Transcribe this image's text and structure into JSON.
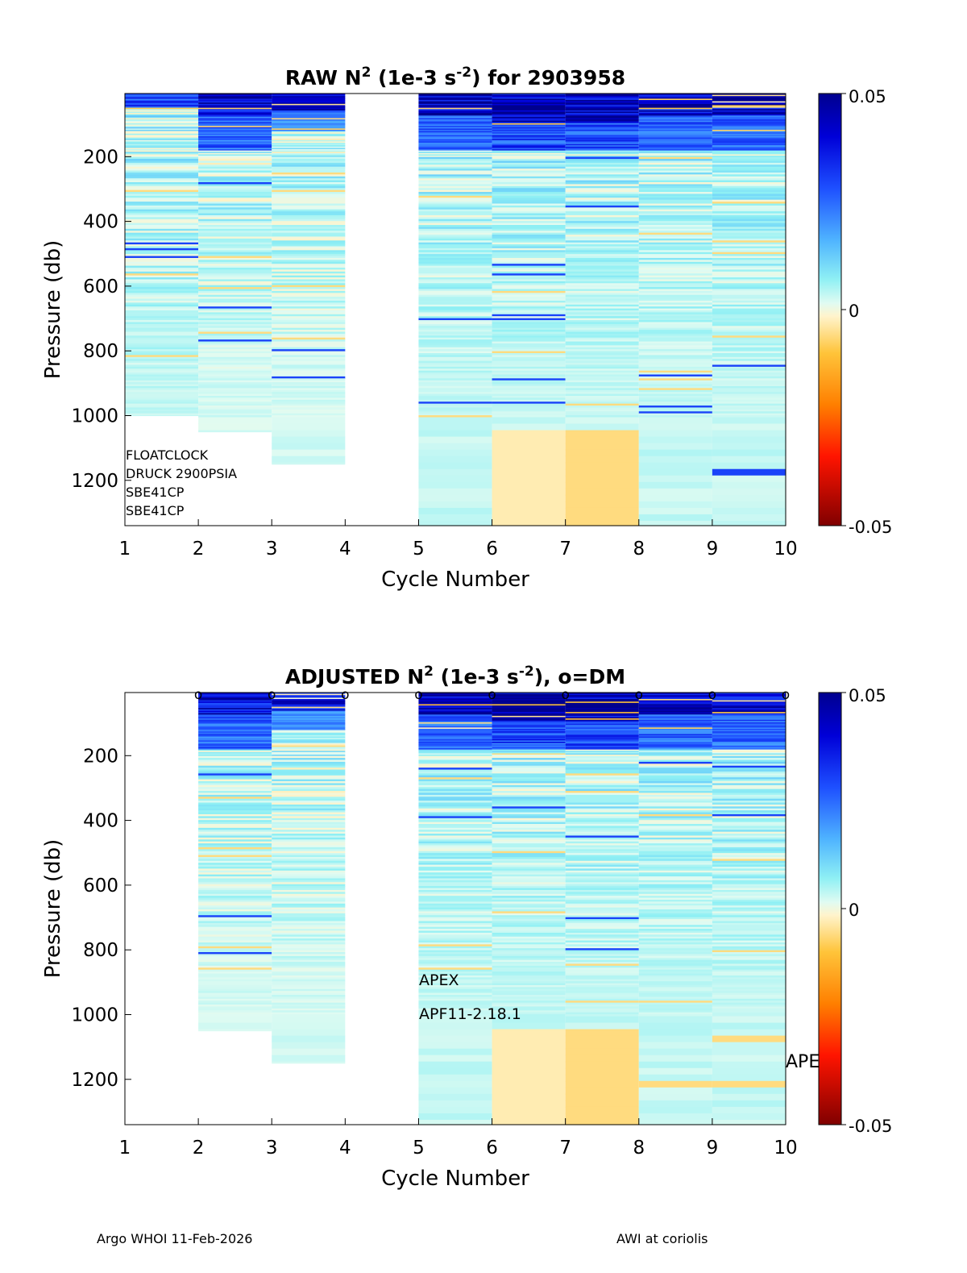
{
  "chart_data": [
    {
      "type": "heatmap",
      "panel": "raw",
      "title_prefix": "RAW N",
      "title_sup1": "2",
      "title_mid": " (1e-3 s",
      "title_sup2": "-2",
      "title_suffix": ") for 2903958",
      "xlabel": "Cycle Number",
      "ylabel": "Pressure (db)",
      "x_ticks": [
        "1",
        "2",
        "3",
        "4",
        "5",
        "6",
        "7",
        "8",
        "9",
        "10"
      ],
      "y_ticks": [
        "200",
        "400",
        "600",
        "800",
        "1000",
        "1200"
      ],
      "xlim": [
        1,
        10
      ],
      "ylim": [
        5,
        1340
      ],
      "colorbar_ticks": [
        "0.05",
        "0",
        "-0.05"
      ],
      "colorbar_range": [
        -0.05,
        0.05
      ],
      "annotations": [
        "FLOATCLOCK",
        "DRUCK 2900PSIA",
        "SBE41CP",
        "SBE41CP"
      ],
      "columns": [
        {
          "cycle": 1,
          "max_pressure": 1000,
          "regime": "weak_mixed",
          "surface_top": 5,
          "deep_value": 0.003
        },
        {
          "cycle": 2,
          "max_pressure": 1050,
          "regime": "strong_surface",
          "surface_top": 5,
          "deep_value": 0.002
        },
        {
          "cycle": 3,
          "max_pressure": 1150,
          "regime": "moderate_surface",
          "surface_top": 5,
          "deep_value": 0.002
        },
        {
          "cycle": 5,
          "max_pressure": 1340,
          "regime": "strong_surface",
          "surface_top": 5,
          "deep_value": 0.003
        },
        {
          "cycle": 6,
          "max_pressure": 1340,
          "regime": "very_strong_surface",
          "surface_top": 5,
          "deep_value": 0.003,
          "bottom_value": -0.003
        },
        {
          "cycle": 7,
          "max_pressure": 1340,
          "regime": "very_strong_surface",
          "surface_top": 5,
          "deep_value": 0.003,
          "bottom_value": -0.006
        },
        {
          "cycle": 8,
          "max_pressure": 1340,
          "regime": "strong_surface",
          "surface_top": 5,
          "deep_value": 0.003
        },
        {
          "cycle": 9,
          "max_pressure": 1340,
          "regime": "strong_surface",
          "surface_top": 5,
          "deep_value": 0.003
        }
      ]
    },
    {
      "type": "heatmap",
      "panel": "adjusted",
      "title_prefix": "ADJUSTED N",
      "title_sup1": "2",
      "title_mid": " (1e-3 s",
      "title_sup2": "-2",
      "title_suffix": "), o=DM",
      "xlabel": "Cycle Number",
      "ylabel": "Pressure (db)",
      "x_ticks": [
        "1",
        "2",
        "3",
        "4",
        "5",
        "6",
        "7",
        "8",
        "9",
        "10"
      ],
      "y_ticks": [
        "200",
        "400",
        "600",
        "800",
        "1000",
        "1200"
      ],
      "xlim": [
        1,
        10
      ],
      "ylim": [
        5,
        1340
      ],
      "colorbar_ticks": [
        "0.05",
        "0",
        "-0.05"
      ],
      "colorbar_range": [
        -0.05,
        0.05
      ],
      "dm_cycles": [
        2,
        3,
        4,
        5,
        6,
        7,
        8,
        9,
        10
      ],
      "dm_marker": "o",
      "annotations": [
        "APEX",
        "APF11-2.18.1"
      ],
      "edge_label": "APE",
      "columns": [
        {
          "cycle": 2,
          "max_pressure": 1050,
          "regime": "strong_surface",
          "surface_top": 5,
          "deep_value": 0.002
        },
        {
          "cycle": 3,
          "max_pressure": 1150,
          "regime": "moderate_surface",
          "surface_top": 5,
          "deep_value": 0.002
        },
        {
          "cycle": 5,
          "max_pressure": 1340,
          "regime": "strong_surface",
          "surface_top": 5,
          "deep_value": 0.003
        },
        {
          "cycle": 6,
          "max_pressure": 1340,
          "regime": "very_strong_surface",
          "surface_top": 5,
          "deep_value": 0.003,
          "bottom_value": -0.003
        },
        {
          "cycle": 7,
          "max_pressure": 1340,
          "regime": "very_strong_surface",
          "surface_top": 5,
          "deep_value": 0.003,
          "bottom_value": -0.006
        },
        {
          "cycle": 8,
          "max_pressure": 1340,
          "regime": "strong_surface",
          "surface_top": 5,
          "deep_value": 0.003
        },
        {
          "cycle": 9,
          "max_pressure": 1340,
          "regime": "strong_surface",
          "surface_top": 5,
          "deep_value": 0.003
        }
      ]
    }
  ],
  "footer": {
    "left": "Argo WHOI 11-Feb-2026",
    "right": "AWI at coriolis"
  }
}
